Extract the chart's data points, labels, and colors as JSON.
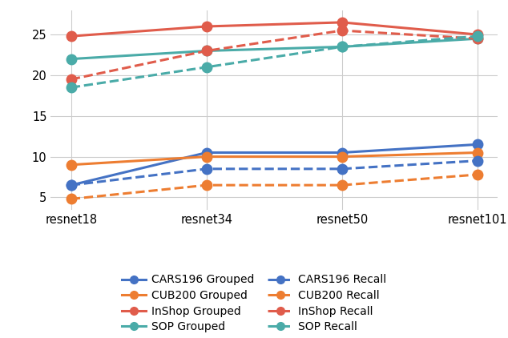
{
  "x_labels": [
    "resnet18",
    "resnet34",
    "resnet50",
    "resnet101"
  ],
  "series": {
    "CARS196 Grouped": {
      "values": [
        6.5,
        10.5,
        10.5,
        11.5
      ],
      "color": "#4472c4",
      "linestyle": "solid",
      "marker": "o"
    },
    "CUB200 Grouped": {
      "values": [
        9.0,
        10.0,
        10.0,
        10.5
      ],
      "color": "#ed7d31",
      "linestyle": "solid",
      "marker": "o"
    },
    "InShop Grouped": {
      "values": [
        24.8,
        26.0,
        26.5,
        25.0
      ],
      "color": "#e05c4b",
      "linestyle": "solid",
      "marker": "o"
    },
    "SOP Grouped": {
      "values": [
        22.0,
        23.0,
        23.5,
        24.5
      ],
      "color": "#4aaba8",
      "linestyle": "solid",
      "marker": "o"
    },
    "CARS196 Recall": {
      "values": [
        6.5,
        8.5,
        8.5,
        9.5
      ],
      "color": "#4472c4",
      "linestyle": "dashed",
      "marker": "o"
    },
    "CUB200 Recall": {
      "values": [
        4.8,
        6.5,
        6.5,
        7.8
      ],
      "color": "#ed7d31",
      "linestyle": "dashed",
      "marker": "o"
    },
    "InShop Recall": {
      "values": [
        19.5,
        23.0,
        25.5,
        24.5
      ],
      "color": "#e05c4b",
      "linestyle": "dashed",
      "marker": "o"
    },
    "SOP Recall": {
      "values": [
        18.5,
        21.0,
        23.5,
        24.8
      ],
      "color": "#4aaba8",
      "linestyle": "dashed",
      "marker": "o"
    }
  },
  "legend_order": [
    "CARS196 Grouped",
    "CUB200 Grouped",
    "InShop Grouped",
    "SOP Grouped",
    "CARS196 Recall",
    "CUB200 Recall",
    "InShop Recall",
    "SOP Recall"
  ],
  "ylim": [
    3.5,
    28
  ],
  "yticks": [
    5,
    10,
    15,
    20,
    25
  ],
  "background_color": "#ffffff",
  "grid_color": "#cccccc",
  "marker_size": 9,
  "linewidth": 2.2
}
